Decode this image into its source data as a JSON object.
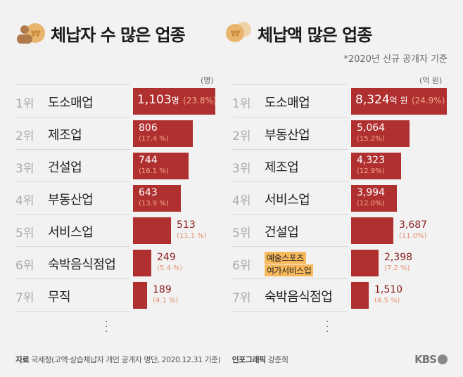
{
  "chart_data": [
    {
      "type": "bar",
      "title": "체납자 수 많은 업종",
      "unit": "(명)",
      "value_suffix_first": "명",
      "categories": [
        "도소매업",
        "제조업",
        "건설업",
        "부동산업",
        "서비스업",
        "숙박음식점업",
        "무직"
      ],
      "ranks": [
        "1위",
        "2위",
        "3위",
        "4위",
        "5위",
        "6위",
        "7위"
      ],
      "values": [
        1103,
        806,
        744,
        643,
        513,
        249,
        189
      ],
      "value_labels": [
        "1,103",
        "806",
        "744",
        "643",
        "513",
        "249",
        "189"
      ],
      "percent_labels": [
        "(23.8%)",
        "(17.4 %)",
        "(16.1 %)",
        "(13.9 %)",
        "(11.1 %)",
        "(5.4 %)",
        "(4.1 %)"
      ],
      "max": 1103
    },
    {
      "type": "bar",
      "title": "체납액 많은 업종",
      "unit": "(억 원)",
      "value_suffix_first": "억 원",
      "categories": [
        "도소매업",
        "부동산업",
        "제조업",
        "서비스업",
        "건설업",
        "예술스포츠 여가서비스업",
        "숙박음식점업"
      ],
      "highlight_lines": [
        "예술스포츠",
        "여가서비스업"
      ],
      "ranks": [
        "1위",
        "2위",
        "3위",
        "4위",
        "5위",
        "6위",
        "7위"
      ],
      "values": [
        8324,
        5064,
        4323,
        3994,
        3687,
        2398,
        1510
      ],
      "value_labels": [
        "8,324",
        "5,064",
        "4,323",
        "3,994",
        "3,687",
        "2,398",
        "1,510"
      ],
      "percent_labels": [
        "(24.9%)",
        "(15.2%)",
        "(12.9%)",
        "(12.0%)",
        "(11.0%)",
        "(7.2 %)",
        "(4.5 %)"
      ],
      "max": 8324
    }
  ],
  "note": "*2020년 신규 공개자 기준",
  "footer": {
    "source_label": "자료",
    "source": "국세청(고액·상습체납자 개인 공개자 명단, 2020.12.31 기준)",
    "credit_label": "인포그래픽",
    "credit": "강준희",
    "logo": "KBS"
  },
  "colors": {
    "bar": "#b03030",
    "bg": "#f2f2f2",
    "highlight": "#f8b95c"
  }
}
